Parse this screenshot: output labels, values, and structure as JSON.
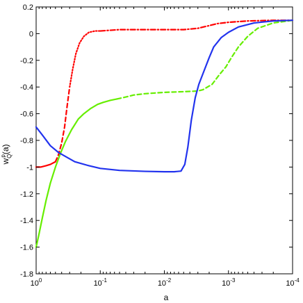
{
  "chart_data": {
    "type": "line",
    "title": "",
    "xlabel": "a",
    "ylabel_main": "w",
    "ylabel_sub": "Q",
    "ylabel_sup": "p",
    "ylabel_tail": "(a)",
    "x_scale": "log",
    "x_reversed": true,
    "xlim": [
      1,
      0.0001
    ],
    "ylim": [
      -1.8,
      0.2
    ],
    "grid": false,
    "legend": "none",
    "x_ticks": [
      {
        "value": 1,
        "base": "10",
        "exp": "0"
      },
      {
        "value": 0.1,
        "base": "10",
        "exp": "-1"
      },
      {
        "value": 0.01,
        "base": "10",
        "exp": "-2"
      },
      {
        "value": 0.001,
        "base": "10",
        "exp": "-3"
      },
      {
        "value": 0.0001,
        "base": "10",
        "exp": "-4"
      }
    ],
    "y_ticks": [
      "0.2",
      "0",
      "-0.2",
      "-0.4",
      "-0.6",
      "-0.8",
      "-1",
      "-1.2",
      "-1.4",
      "-1.6",
      "-1.8"
    ],
    "y_tick_values": [
      0.2,
      0,
      -0.2,
      -0.4,
      -0.6,
      -0.8,
      -1,
      -1.2,
      -1.4,
      -1.6,
      -1.8
    ],
    "series": [
      {
        "color": "#ff0000",
        "segments": [
          {
            "dash": "solid",
            "points": [
              [
                1.0,
                -1.0
              ],
              [
                0.85,
                -1.0
              ],
              [
                0.7,
                -0.99
              ],
              [
                0.6,
                -0.98
              ],
              [
                0.5,
                -0.96
              ]
            ]
          },
          {
            "dash": "dashed",
            "points": [
              [
                0.5,
                -0.96
              ],
              [
                0.45,
                -0.91
              ],
              [
                0.4,
                -0.82
              ],
              [
                0.36,
                -0.7
              ],
              [
                0.33,
                -0.55
              ],
              [
                0.3,
                -0.4
              ]
            ]
          },
          {
            "dash": "dotted",
            "points": [
              [
                0.3,
                -0.4
              ],
              [
                0.27,
                -0.27
              ],
              [
                0.24,
                -0.15
              ],
              [
                0.21,
                -0.07
              ],
              [
                0.18,
                -0.02
              ],
              [
                0.15,
                0.01
              ],
              [
                0.12,
                0.02
              ],
              [
                0.1,
                0.02
              ]
            ]
          },
          {
            "dash": "dashdot",
            "points": [
              [
                0.1,
                0.02
              ],
              [
                0.05,
                0.03
              ],
              [
                0.02,
                0.03
              ],
              [
                0.01,
                0.03
              ],
              [
                0.005,
                0.03
              ],
              [
                0.003,
                0.04
              ],
              [
                0.002,
                0.06
              ],
              [
                0.0015,
                0.075
              ],
              [
                0.001,
                0.085
              ],
              [
                0.0005,
                0.095
              ],
              [
                0.0002,
                0.1
              ],
              [
                0.0001,
                0.1
              ]
            ]
          }
        ]
      },
      {
        "color": "#66ee00",
        "segments": [
          {
            "dash": "solid",
            "points": [
              [
                1.0,
                -1.6
              ],
              [
                0.9,
                -1.5
              ],
              [
                0.8,
                -1.38
              ],
              [
                0.7,
                -1.25
              ],
              [
                0.6,
                -1.12
              ],
              [
                0.5,
                -1.0
              ],
              [
                0.42,
                -0.9
              ],
              [
                0.35,
                -0.81
              ],
              [
                0.28,
                -0.72
              ],
              [
                0.22,
                -0.64
              ],
              [
                0.18,
                -0.6
              ],
              [
                0.14,
                -0.56
              ],
              [
                0.11,
                -0.53
              ],
              [
                0.09,
                -0.515
              ],
              [
                0.07,
                -0.5
              ],
              [
                0.055,
                -0.49
              ]
            ]
          },
          {
            "dash": "dashed",
            "points": [
              [
                0.055,
                -0.49
              ],
              [
                0.04,
                -0.475
              ],
              [
                0.03,
                -0.46
              ],
              [
                0.02,
                -0.45
              ],
              [
                0.01,
                -0.44
              ],
              [
                0.005,
                -0.435
              ],
              [
                0.003,
                -0.43
              ],
              [
                0.0025,
                -0.42
              ],
              [
                0.0018,
                -0.38
              ],
              [
                0.0014,
                -0.31
              ],
              [
                0.0011,
                -0.25
              ],
              [
                0.0009,
                -0.18
              ],
              [
                0.0007,
                -0.1
              ],
              [
                0.0005,
                -0.02
              ],
              [
                0.00035,
                0.04
              ],
              [
                0.0002,
                0.08
              ],
              [
                0.0001,
                0.1
              ]
            ]
          }
        ]
      },
      {
        "color": "#2233ee",
        "segments": [
          {
            "dash": "solid",
            "points": [
              [
                1.0,
                -0.7
              ],
              [
                0.8,
                -0.76
              ],
              [
                0.6,
                -0.84
              ],
              [
                0.45,
                -0.89
              ],
              [
                0.35,
                -0.92
              ],
              [
                0.25,
                -0.96
              ],
              [
                0.15,
                -0.99
              ],
              [
                0.1,
                -1.01
              ],
              [
                0.05,
                -1.025
              ],
              [
                0.02,
                -1.032
              ],
              [
                0.01,
                -1.035
              ],
              [
                0.007,
                -1.035
              ],
              [
                0.0055,
                -1.03
              ],
              [
                0.0048,
                -0.98
              ],
              [
                0.0043,
                -0.85
              ],
              [
                0.0038,
                -0.65
              ],
              [
                0.0033,
                -0.48
              ],
              [
                0.0029,
                -0.38
              ],
              [
                0.0025,
                -0.3
              ],
              [
                0.002,
                -0.18
              ],
              [
                0.0017,
                -0.1
              ],
              [
                0.0013,
                -0.03
              ],
              [
                0.001,
                0.01
              ],
              [
                0.0007,
                0.05
              ],
              [
                0.0004,
                0.08
              ],
              [
                0.0002,
                0.095
              ],
              [
                0.0001,
                0.1
              ]
            ]
          }
        ]
      }
    ]
  }
}
